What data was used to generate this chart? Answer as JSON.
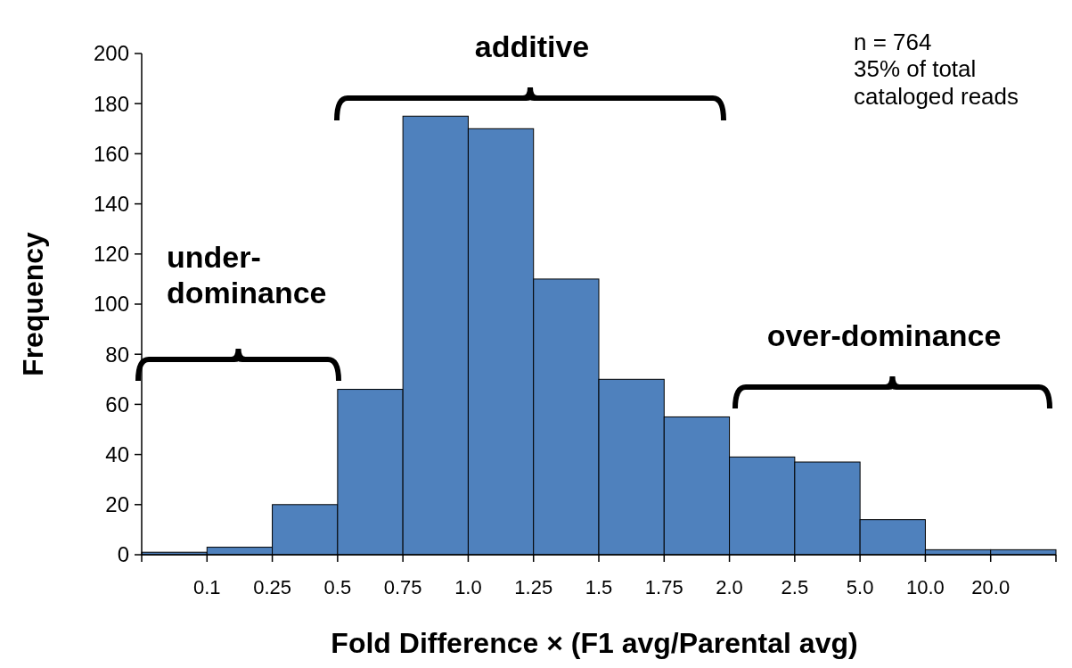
{
  "chart_data": {
    "type": "bar",
    "xlabel": "Fold Difference × (F1 avg/Parental avg)",
    "ylabel": "Frequency",
    "categories": [
      null,
      null,
      null,
      null,
      null,
      null,
      null,
      null,
      null,
      null,
      null,
      null,
      null,
      null
    ],
    "values": [
      1,
      3,
      20,
      66,
      175,
      170,
      110,
      70,
      55,
      39,
      37,
      14,
      2,
      2
    ],
    "color": "#4f81bd",
    "ylim": [
      0,
      200
    ],
    "yticks": [
      0,
      20,
      40,
      60,
      80,
      100,
      120,
      140,
      160,
      180,
      200
    ],
    "grid": false,
    "legend": false,
    "annotations": [
      "n = 764\n35% of total\ncataloged reads",
      "additive",
      "under-\ndominance",
      "over-dominance",
      "0.1",
      "0.25",
      "0.5",
      "0.75",
      "1.0",
      "1.25",
      "1.5",
      "1.75",
      "2.0",
      "2.5",
      "5.0",
      "10.0",
      "20.0"
    ]
  }
}
